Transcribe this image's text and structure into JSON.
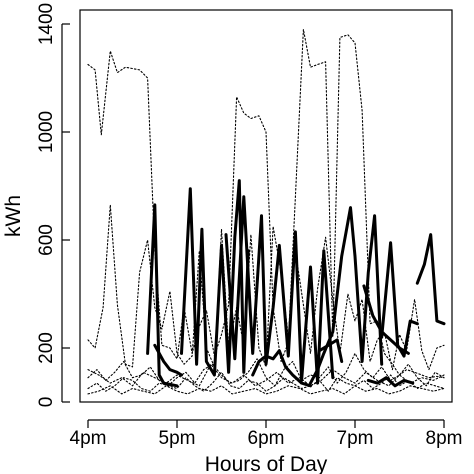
{
  "chart_data": {
    "type": "line",
    "title": "",
    "xlabel": "Hours of Day",
    "ylabel": "kWh",
    "xlim": [
      16.0,
      20.0
    ],
    "ylim": [
      0,
      1400
    ],
    "x_ticks": [
      {
        "value": 16,
        "label": "4pm"
      },
      {
        "value": 17,
        "label": "5pm"
      },
      {
        "value": 18,
        "label": "6pm"
      },
      {
        "value": 19,
        "label": "7pm"
      },
      {
        "value": 20,
        "label": "8pm"
      }
    ],
    "y_ticks": [
      {
        "value": 0,
        "label": "0"
      },
      {
        "value": 200,
        "label": "200"
      },
      {
        "value": 600,
        "label": "600"
      },
      {
        "value": 1000,
        "label": "1000"
      },
      {
        "value": 1400,
        "label": "1400"
      }
    ],
    "grid": false,
    "legend": "none",
    "colors": {
      "line": "#000000",
      "background": "#ffffff"
    },
    "series": [
      {
        "style": "dotted",
        "x": [
          16.0,
          16.08,
          16.15,
          16.25,
          16.33,
          16.42,
          16.58,
          16.67,
          16.75,
          16.83,
          16.92,
          17.0,
          17.08,
          17.17,
          17.25,
          17.33,
          17.42,
          17.5,
          17.58,
          17.67,
          17.75,
          17.83,
          17.92,
          18.0,
          18.08,
          18.17,
          18.25,
          18.33,
          18.42,
          18.5,
          18.58,
          18.67,
          18.75,
          18.83,
          18.92,
          19.0,
          19.08,
          19.17,
          19.25,
          19.33,
          19.42,
          19.5,
          19.58,
          19.67,
          19.75,
          19.83,
          19.92,
          20.0
        ],
        "y": [
          1250,
          1230,
          990,
          1300,
          1220,
          1240,
          1230,
          1200,
          560,
          210,
          200,
          160,
          350,
          180,
          280,
          340,
          170,
          250,
          360,
          1130,
          1070,
          1050,
          1060,
          1000,
          350,
          150,
          220,
          760,
          1380,
          1240,
          1250,
          1260,
          240,
          1350,
          1360,
          1330,
          1080,
          290,
          300,
          180,
          140,
          100,
          120,
          110,
          100,
          90,
          95,
          90
        ]
      },
      {
        "style": "dotted",
        "x": [
          16.0,
          16.08,
          16.17,
          16.25,
          16.33,
          16.42,
          16.5,
          16.58,
          16.67,
          16.75,
          16.83,
          16.92,
          17.0,
          17.08,
          17.17,
          17.25,
          17.33,
          17.42,
          17.5,
          17.58,
          17.67,
          17.75,
          17.83,
          17.92,
          18.0,
          18.08,
          18.17,
          18.25,
          18.33,
          18.42,
          18.5,
          18.58,
          18.67,
          18.75,
          18.83,
          18.92,
          19.0,
          19.08,
          19.17,
          19.25,
          19.33,
          19.42,
          19.5,
          19.58,
          19.67,
          19.75,
          19.83,
          19.92,
          20.0
        ],
        "y": [
          230,
          200,
          350,
          730,
          360,
          140,
          130,
          480,
          600,
          350,
          270,
          410,
          180,
          140,
          170,
          560,
          200,
          130,
          640,
          200,
          350,
          210,
          620,
          200,
          130,
          650,
          480,
          240,
          560,
          360,
          180,
          420,
          610,
          380,
          180,
          400,
          300,
          380,
          150,
          230,
          260,
          120,
          250,
          190,
          380,
          190,
          120,
          200,
          210
        ]
      },
      {
        "style": "dotted",
        "x": [
          16.0,
          16.1,
          16.2,
          16.3,
          16.4,
          16.5,
          16.6,
          16.7,
          16.8,
          16.9,
          17.0,
          17.1,
          17.2,
          17.3,
          17.4,
          17.5,
          17.6,
          17.7,
          17.8,
          17.9,
          18.0,
          18.1,
          18.2,
          18.3,
          18.4,
          18.5,
          18.6,
          18.7,
          18.8,
          18.9,
          19.0,
          19.1,
          19.2,
          19.3,
          19.4,
          19.5,
          19.6,
          19.7,
          19.8,
          19.9,
          20.0
        ],
        "y": [
          90,
          120,
          80,
          110,
          150,
          90,
          100,
          130,
          80,
          60,
          90,
          110,
          70,
          120,
          140,
          100,
          70,
          80,
          110,
          160,
          90,
          60,
          120,
          150,
          80,
          100,
          90,
          130,
          70,
          110,
          180,
          120,
          90,
          130,
          80,
          100,
          140,
          90,
          60,
          110,
          90
        ]
      },
      {
        "style": "dotted",
        "x": [
          16.0,
          16.1,
          16.2,
          16.3,
          16.4,
          16.5,
          16.6,
          16.7,
          16.8,
          16.9,
          17.0,
          17.1,
          17.2,
          17.3,
          17.4,
          17.5,
          17.6,
          17.7,
          17.8,
          17.9,
          18.0,
          18.1,
          18.2,
          18.3,
          18.4,
          18.5,
          18.6,
          18.7,
          18.8,
          18.9,
          19.0,
          19.1,
          19.2,
          19.3,
          19.4,
          19.5,
          19.6,
          19.7,
          19.8,
          19.9,
          20.0
        ],
        "y": [
          50,
          70,
          40,
          60,
          90,
          80,
          50,
          40,
          70,
          60,
          50,
          90,
          60,
          40,
          70,
          110,
          60,
          50,
          80,
          70,
          40,
          60,
          90,
          70,
          50,
          60,
          80,
          40,
          90,
          70,
          60,
          80,
          50,
          70,
          100,
          60,
          80,
          50,
          70,
          60,
          50
        ]
      },
      {
        "style": "dotted",
        "x": [
          16.0,
          16.12,
          16.25,
          16.38,
          16.5,
          16.62,
          16.75,
          16.88,
          17.0,
          17.12,
          17.25,
          17.38,
          17.5,
          17.62,
          17.75,
          17.88,
          18.0,
          18.12,
          18.25,
          18.38,
          18.5,
          18.62,
          18.75,
          18.88,
          19.0,
          19.12,
          19.25,
          19.38,
          19.5,
          19.62,
          19.75,
          19.88,
          20.0
        ],
        "y": [
          120,
          100,
          70,
          90,
          60,
          110,
          90,
          70,
          100,
          80,
          60,
          140,
          90,
          70,
          100,
          60,
          80,
          110,
          70,
          90,
          60,
          80,
          120,
          90,
          70,
          110,
          80,
          60,
          100,
          70,
          90,
          80,
          100
        ]
      },
      {
        "style": "dotted",
        "x": [
          16.0,
          16.12,
          16.25,
          16.38,
          16.5,
          16.62,
          16.75,
          16.88,
          17.0,
          17.12,
          17.25,
          17.38,
          17.5,
          17.62,
          17.75,
          17.88,
          18.0,
          18.12,
          18.25,
          18.38,
          18.5,
          18.62,
          18.75,
          18.88,
          19.0,
          19.12,
          19.25,
          19.38,
          19.5,
          19.62,
          19.75,
          19.88,
          20.0
        ],
        "y": [
          30,
          40,
          60,
          30,
          50,
          40,
          30,
          60,
          40,
          30,
          50,
          40,
          60,
          30,
          40,
          50,
          30,
          40,
          60,
          50,
          30,
          40,
          50,
          30,
          60,
          40,
          50,
          30,
          40,
          60,
          50,
          40,
          50
        ]
      },
      {
        "style": "solid",
        "x": [
          16.67,
          16.75,
          16.8,
          16.85,
          17.0
        ],
        "y": [
          180,
          730,
          100,
          70,
          60
        ]
      },
      {
        "style": "solid",
        "x": [
          16.75,
          16.85,
          16.92,
          17.0,
          17.05
        ],
        "y": [
          210,
          150,
          120,
          110,
          100
        ]
      },
      {
        "style": "solid",
        "x": [
          17.05,
          17.15,
          17.22,
          17.28,
          17.33,
          17.42,
          17.5,
          17.58,
          17.65,
          17.7,
          17.75,
          17.8
        ],
        "y": [
          180,
          790,
          140,
          640,
          150,
          100,
          580,
          110,
          610,
          820,
          110,
          560
        ]
      },
      {
        "style": "solid",
        "x": [
          17.55,
          17.65,
          17.75,
          17.85,
          17.95,
          18.0,
          18.08,
          18.15,
          18.25,
          18.33,
          18.4,
          18.5,
          18.58,
          18.65,
          18.75
        ],
        "y": [
          620,
          160,
          760,
          180,
          690,
          140,
          350,
          580,
          170,
          630,
          80,
          500,
          70,
          560,
          90
        ]
      },
      {
        "style": "solid",
        "x": [
          17.85,
          17.92,
          18.0,
          18.08,
          18.15,
          18.22,
          18.3,
          18.4,
          18.5
        ],
        "y": [
          100,
          150,
          170,
          160,
          190,
          130,
          100,
          70,
          60
        ]
      },
      {
        "style": "solid",
        "x": [
          18.5,
          18.58,
          18.65,
          18.75,
          18.85,
          18.95,
          19.0,
          19.08,
          19.15,
          19.22,
          19.3
        ],
        "y": [
          70,
          120,
          180,
          260,
          540,
          720,
          540,
          150,
          480,
          690,
          140
        ]
      },
      {
        "style": "solid",
        "x": [
          18.6,
          18.7,
          18.8,
          18.85
        ],
        "y": [
          190,
          210,
          230,
          150
        ]
      },
      {
        "style": "solid",
        "x": [
          19.1,
          19.2,
          19.3,
          19.4,
          19.5,
          19.6
        ],
        "y": [
          430,
          320,
          260,
          230,
          200,
          180
        ]
      },
      {
        "style": "solid",
        "x": [
          19.15,
          19.25,
          19.35,
          19.45,
          19.55,
          19.65
        ],
        "y": [
          80,
          70,
          90,
          60,
          80,
          70
        ]
      },
      {
        "style": "solid",
        "x": [
          19.3,
          19.4,
          19.48,
          19.55,
          19.62,
          19.7
        ],
        "y": [
          240,
          590,
          210,
          170,
          300,
          290
        ]
      },
      {
        "style": "solid",
        "x": [
          19.7,
          19.78,
          19.85,
          19.92,
          20.0
        ],
        "y": [
          440,
          510,
          620,
          300,
          290
        ]
      }
    ]
  }
}
